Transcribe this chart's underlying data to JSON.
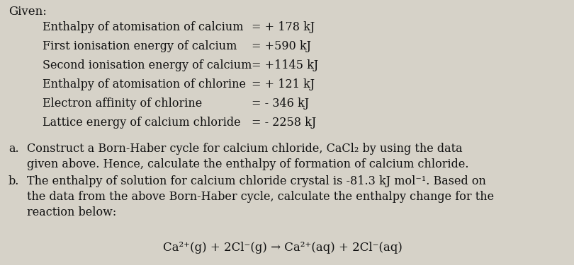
{
  "background_color": "#d6d2c8",
  "given_label": "Given:",
  "data_rows": [
    {
      "label": "Enthalpy of atomisation of calcium",
      "value": "= + 178 kJ"
    },
    {
      "label": "First ionisation energy of calcium",
      "value": "= +590 kJ"
    },
    {
      "label": "Second ionisation energy of calcium",
      "value": "= +1145 kJ"
    },
    {
      "label": "Enthalpy of atomisation of chlorine",
      "value": "= + 121 kJ"
    },
    {
      "label": "Electron affinity of chlorine",
      "value": "= - 346 kJ"
    },
    {
      "label": "Lattice energy of calcium chloride",
      "value": "= - 2258 kJ"
    }
  ],
  "question_a_bullet": "a.",
  "question_a_line1": "Construct a Born-Haber cycle for calcium chloride, CaCl₂ by using the data",
  "question_a_line2": "given above. Hence, calculate the enthalpy of formation of calcium chloride.",
  "question_b_bullet": "b.",
  "question_b_line1": "The enthalpy of solution for calcium chloride crystal is -81.3 kJ mol⁻¹. Based on",
  "question_b_line2": "the data from the above Born-Haber cycle, calculate the enthalpy change for the",
  "question_b_line3": "reaction below:",
  "reaction_line": "Ca²⁺(g) + 2Cl⁻(g) → Ca²⁺(aq) + 2Cl⁻(aq)",
  "font_size_given": 12,
  "font_size_data": 11.5,
  "font_size_question": 11.5,
  "font_size_reaction": 12,
  "text_color": "#111111",
  "font_family": "DejaVu Serif"
}
